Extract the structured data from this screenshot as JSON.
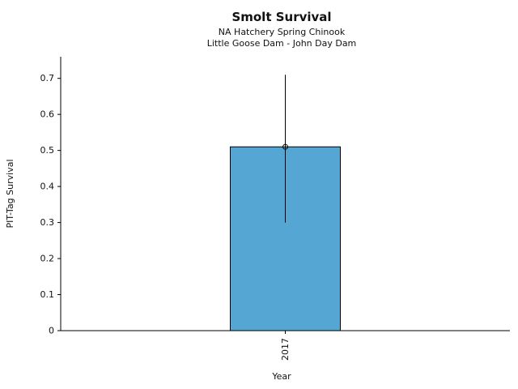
{
  "chart_data": {
    "type": "bar",
    "title": "Smolt Survival",
    "subtitle_lines": [
      "NA Hatchery Spring Chinook",
      "Little Goose Dam - John Day Dam"
    ],
    "xlabel": "Year",
    "ylabel": "PIT-Tag Survival",
    "categories": [
      "2017"
    ],
    "values": [
      0.51
    ],
    "error_low": [
      0.3
    ],
    "error_high": [
      0.71
    ],
    "yticks": [
      0,
      0.1,
      0.2,
      0.3,
      0.4,
      0.5,
      0.6,
      0.7
    ],
    "ytick_labels": [
      "0",
      "0.1",
      "0.2",
      "0.3",
      "0.4",
      "0.5",
      "0.6",
      "0.7"
    ],
    "ylim": [
      0,
      0.76
    ],
    "grid": false,
    "legend": "none",
    "marker": "open-circle",
    "colors": {
      "bar_fill": "#55a6d2",
      "bar_edge": "#000000",
      "error": "#000000"
    }
  }
}
